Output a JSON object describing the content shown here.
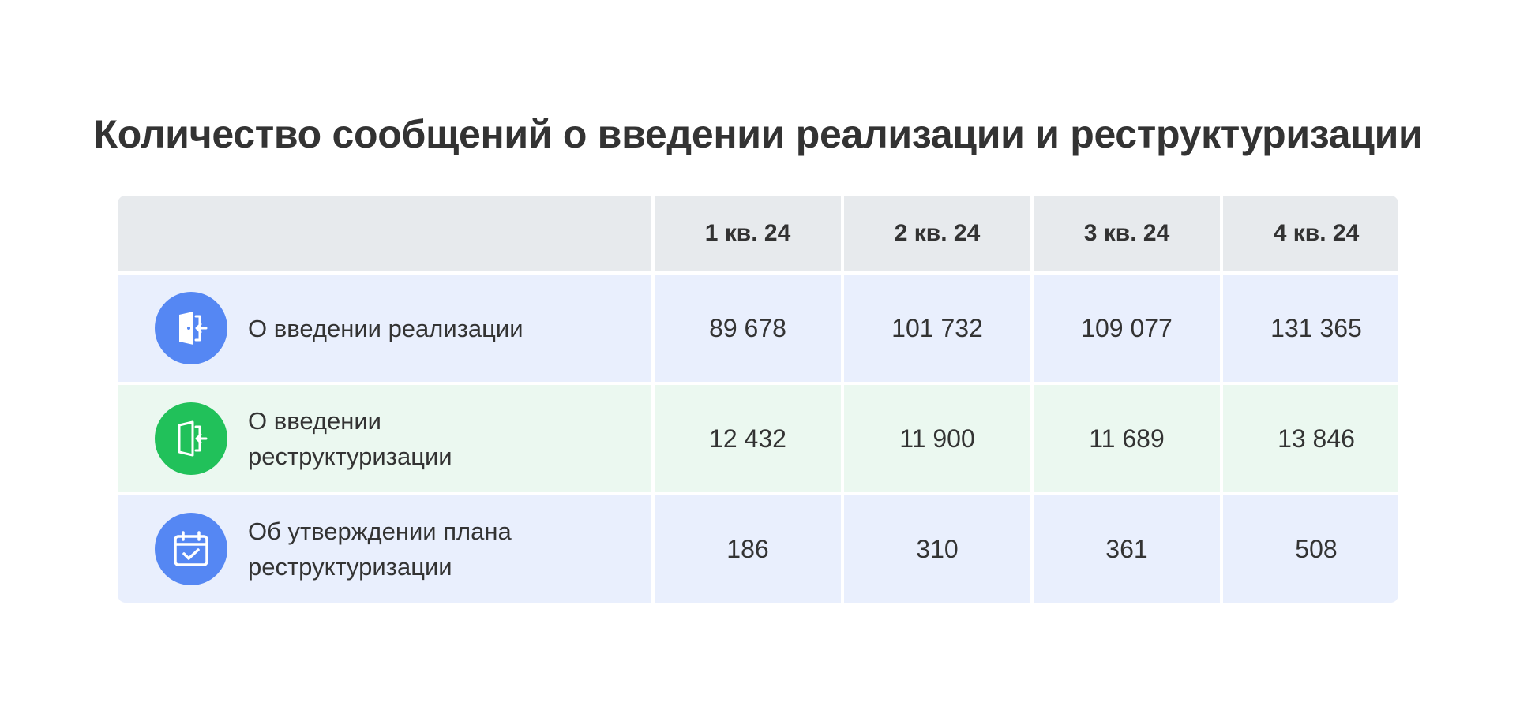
{
  "title": "Количество сообщений о введении реализации и реструктуризации",
  "columns": [
    "1 кв. 24",
    "2 кв. 24",
    "3 кв. 24",
    "4 кв. 24"
  ],
  "rows": [
    {
      "label": "О введении реализации",
      "icon": "door-exit-icon",
      "icon_color": "#5587f3",
      "row_color": "#e9effd",
      "values": [
        "89 678",
        "101 732",
        "109 077",
        "131 365"
      ]
    },
    {
      "label": "О введении реструктуризации",
      "icon": "door-exit-outline-icon",
      "icon_color": "#21c15a",
      "row_color": "#ebf8f0",
      "values": [
        "12 432",
        "11 900",
        "11 689",
        "13 846"
      ]
    },
    {
      "label": "Об утверждении плана реструктуризации",
      "icon": "calendar-check-icon",
      "icon_color": "#5587f3",
      "row_color": "#e9effd",
      "values": [
        "186",
        "310",
        "361",
        "508"
      ]
    }
  ]
}
